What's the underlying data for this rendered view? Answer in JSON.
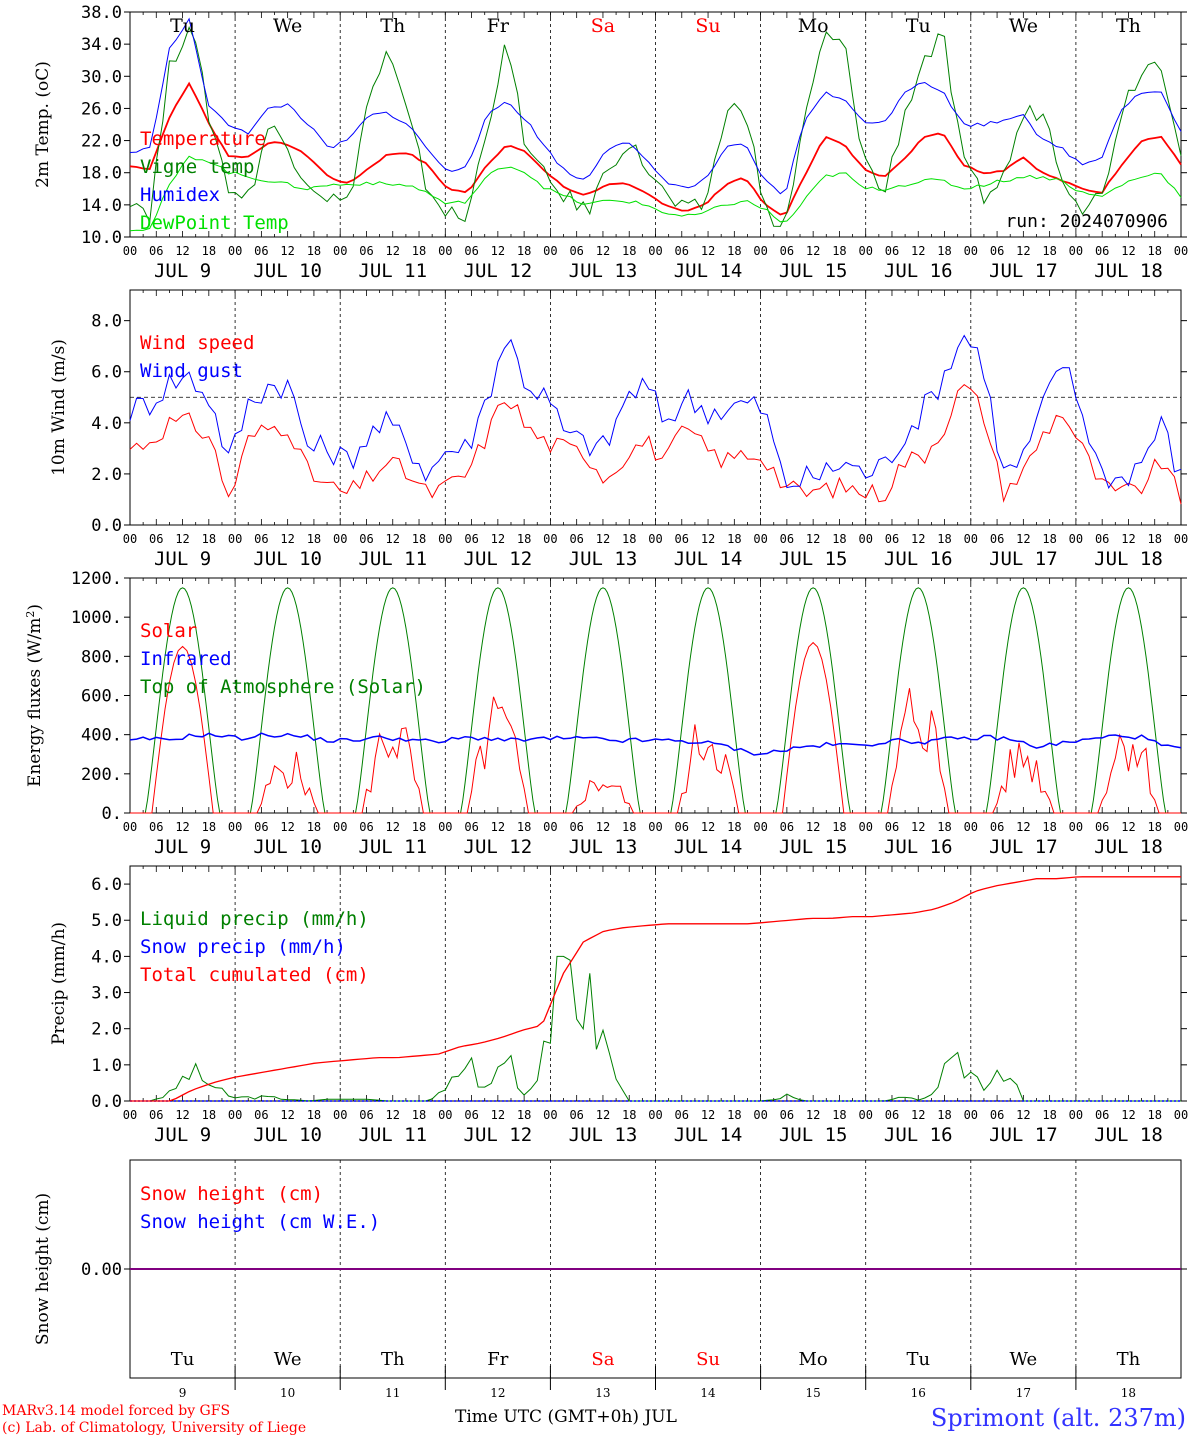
{
  "colors": {
    "red": "#ff0000",
    "green": "#008000",
    "blue": "#0000ff",
    "lightgreen": "#00e000",
    "purple": "#800080",
    "darkgreen": "#1a8a1a",
    "title_blue": "#3333ff"
  },
  "days": {
    "dates": [
      "JUL  9",
      "JUL 10",
      "JUL 11",
      "JUL 12",
      "JUL 13",
      "JUL 14",
      "JUL 15",
      "JUL 16",
      "JUL 17",
      "JUL 18"
    ],
    "weekdays": [
      "Tu",
      "We",
      "Th",
      "Fr",
      "Sa",
      "Su",
      "Mo",
      "Tu",
      "We",
      "Th"
    ],
    "weekend_index": [
      4,
      5
    ],
    "day_numbers": [
      "9",
      "10",
      "11",
      "12",
      "13",
      "14",
      "15",
      "16",
      "17",
      "18"
    ],
    "hour_labels": [
      "00",
      "06",
      "12",
      "18"
    ],
    "final_hour_label": "00"
  },
  "footer": {
    "model_line": "MARv3.14 model forced by GFS",
    "credit_line": "(c) Lab. of Climatology, University of Liege",
    "axis_title": "Time UTC (GMT+0h) JUL",
    "station": "Sprimont (alt. 237m)"
  },
  "chart_data": [
    {
      "type": "line",
      "ylabel": "2m Temp. (oC)",
      "ylim": [
        10.0,
        38.0
      ],
      "yticks": [
        "10.0",
        "14.0",
        "18.0",
        "22.0",
        "26.0",
        "30.0",
        "34.0",
        "38.0"
      ],
      "annotation": "run: 2024070906",
      "x_unit": "hours since JUL 9 00 UTC, 6-hourly, 0..240",
      "series": [
        {
          "name": "Temperature",
          "color": "red",
          "values": [
            18.8,
            18.5,
            25,
            29.2,
            24,
            20,
            20,
            21.8,
            21.5,
            20,
            17.5,
            16.6,
            18.5,
            20.3,
            20.5,
            19,
            16,
            15.5,
            19,
            21.5,
            20.5,
            18,
            16,
            15.2,
            16.5,
            16.6,
            15.5,
            14,
            13.2,
            14,
            16.5,
            17.5,
            14,
            12.5,
            17.5,
            22.5,
            21.5,
            18.5,
            17.5,
            19.5,
            22.5,
            23,
            19,
            18,
            18.2,
            20,
            18,
            17,
            16,
            15.5,
            19,
            22,
            22.5,
            19
          ]
        },
        {
          "name": "Vigne temp",
          "color": "green",
          "values": [
            15,
            13,
            31,
            37,
            25,
            16,
            15,
            24,
            21,
            17,
            15,
            14,
            27,
            33,
            25,
            16,
            13,
            12,
            24,
            34,
            21,
            17,
            15,
            13,
            18,
            22,
            19,
            15,
            13,
            14,
            25,
            27,
            13,
            11,
            24,
            35,
            34,
            20,
            15,
            25,
            32,
            35,
            19,
            15,
            17,
            25,
            26,
            18,
            14,
            15,
            26,
            31,
            32,
            21
          ]
        },
        {
          "name": "Humidex",
          "color": "blue",
          "values": [
            20.5,
            21,
            33.5,
            37,
            26,
            24,
            23,
            26,
            26.5,
            24,
            21,
            22,
            25,
            25.5,
            24,
            21,
            18,
            19,
            25,
            27,
            24.5,
            21,
            18,
            17,
            21,
            22,
            19.5,
            17,
            16,
            17,
            21,
            21.5,
            17,
            15,
            24.5,
            28,
            27,
            24.5,
            24,
            28,
            29.5,
            28,
            24,
            24,
            24.5,
            25.5,
            22,
            21,
            19,
            20,
            26,
            28,
            28,
            23
          ]
        },
        {
          "name": "DewPoint Temp",
          "color": "lightgreen",
          "values": [
            11,
            11,
            16.5,
            20,
            19.5,
            18,
            17.5,
            17,
            16.5,
            16,
            16.5,
            16.5,
            16.8,
            16.5,
            16.5,
            15.5,
            14,
            14.5,
            17.5,
            19,
            18,
            16,
            15,
            14,
            14.5,
            14.5,
            14,
            13,
            12.5,
            13,
            14,
            14.5,
            13.5,
            11.5,
            14.5,
            17.5,
            18,
            16,
            16,
            16.5,
            17,
            17,
            16,
            16.5,
            17,
            17.5,
            17.5,
            17,
            15.5,
            15,
            16.5,
            17.5,
            18,
            15
          ]
        }
      ]
    },
    {
      "type": "line",
      "ylabel": "10m Wind (m/s)",
      "ylim": [
        0.0,
        9.2
      ],
      "yticks": [
        "0.0",
        "2.0",
        "4.0",
        "6.0",
        "8.0"
      ],
      "reference_line": 5.0,
      "series": [
        {
          "name": "Wind speed",
          "color": "red",
          "values": [
            3,
            3.3,
            4,
            4,
            3.5,
            1,
            3.4,
            3.8,
            3.9,
            2,
            1.5,
            1.2,
            1.8,
            2.5,
            2,
            1.2,
            1.5,
            2,
            3.5,
            5.2,
            3.8,
            3.2,
            3,
            2.8,
            1.8,
            2.8,
            3.3,
            2.5,
            3.8,
            3,
            2.5,
            2.8,
            2.7,
            1.5,
            1.2,
            1.4,
            1.5,
            1.3,
            1.2,
            2.5,
            2.7,
            3.8,
            5.5,
            4.5,
            1.3,
            2,
            3.5,
            4.5,
            3,
            1.5,
            1.2,
            1.5,
            2.5,
            1
          ]
        },
        {
          "name": "Wind gust",
          "color": "blue",
          "values": [
            4.5,
            4.8,
            5.6,
            5.8,
            5,
            2.5,
            4.8,
            5.5,
            5.5,
            3,
            3,
            2.5,
            3.5,
            4,
            3.2,
            2,
            3,
            3,
            5,
            7.5,
            5.5,
            5,
            3.5,
            3.2,
            3,
            5,
            5.5,
            4,
            5,
            4.5,
            4.5,
            4.8,
            4.5,
            1.6,
            1.8,
            2,
            2.5,
            2,
            2.3,
            3.5,
            4.5,
            5.8,
            7.5,
            6.5,
            2,
            2.5,
            4.5,
            6.5,
            4.5,
            2,
            1.8,
            2.5,
            4,
            1.8
          ]
        }
      ]
    },
    {
      "type": "line",
      "ylabel": "Energy fluxes (W/m2)",
      "ylim": [
        0,
        1200
      ],
      "yticks": [
        "0.",
        "200.",
        "400.",
        "600.",
        "800.",
        "1000.",
        "1200."
      ],
      "series": [
        {
          "name": "Solar",
          "color": "red",
          "peaks": [
            850,
            350,
            600,
            650,
            240,
            600,
            870,
            800,
            420,
            580
          ]
        },
        {
          "name": "Infrared",
          "color": "blue",
          "values": [
            365,
            380,
            370,
            390,
            400,
            395,
            380,
            395,
            400,
            395,
            385,
            370,
            370,
            380,
            385,
            380,
            370,
            360,
            380,
            385,
            380,
            370,
            375,
            380,
            380,
            380,
            375,
            370,
            370,
            370,
            370,
            365,
            355,
            340,
            310,
            305,
            320,
            335,
            345,
            350,
            345,
            355,
            370,
            365,
            365,
            375,
            380,
            385,
            385,
            365,
            340,
            350,
            365,
            375,
            390,
            395,
            385,
            340,
            330
          ]
        },
        {
          "name": "Top of Atmosphere (Solar)",
          "color": "green",
          "peak": 1150
        }
      ]
    },
    {
      "type": "line",
      "ylabel": "Precip (mm/h)",
      "ylim": [
        0.0,
        6.5
      ],
      "yticks": [
        "0.0",
        "1.0",
        "2.0",
        "3.0",
        "4.0",
        "5.0",
        "6.0"
      ],
      "series": [
        {
          "name": "Liquid precip (mm/h)",
          "color": "green",
          "values": [
            0,
            0,
            0.2,
            0.8,
            0.5,
            0.1,
            0.1,
            0.1,
            0.05,
            0,
            0.05,
            0.05,
            0.05,
            0,
            0,
            0,
            0.3,
            1.2,
            0.2,
            1.5,
            0,
            2,
            3.9,
            2.8,
            1.5,
            0,
            0,
            0,
            0,
            0,
            0,
            0,
            0,
            0.15,
            0,
            0,
            0,
            0,
            0,
            0.1,
            0,
            0.7,
            1,
            0.5,
            1.1,
            0,
            0,
            0,
            0,
            0,
            0,
            0,
            0,
            0
          ]
        },
        {
          "name": "Snow precip (mm/h)",
          "color": "blue",
          "values": []
        },
        {
          "name": "Total cumulated (cm)",
          "color": "red",
          "values": [
            0,
            0,
            0,
            0.3,
            0.5,
            0.65,
            0.75,
            0.85,
            0.95,
            1.05,
            1.1,
            1.15,
            1.2,
            1.2,
            1.25,
            1.3,
            1.5,
            1.6,
            1.75,
            1.95,
            2.1,
            3.5,
            4.4,
            4.7,
            4.8,
            4.85,
            4.9,
            4.9,
            4.9,
            4.9,
            4.9,
            4.95,
            5.0,
            5.05,
            5.05,
            5.1,
            5.1,
            5.15,
            5.2,
            5.3,
            5.5,
            5.8,
            5.95,
            6.05,
            6.15,
            6.15,
            6.2,
            6.2,
            6.2,
            6.2,
            6.2,
            6.2
          ]
        }
      ]
    },
    {
      "type": "line",
      "ylabel": "Snow height (cm)",
      "yticks": [
        "0.00"
      ],
      "series": [
        {
          "name": "Snow height (cm)",
          "color": "red",
          "values": [
            0,
            0
          ]
        },
        {
          "name": "Snow height (cm W.E.)",
          "color": "blue",
          "values": [
            0,
            0
          ]
        }
      ]
    }
  ]
}
